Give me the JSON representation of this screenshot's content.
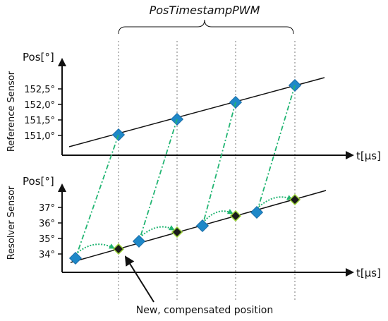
{
  "title": "PosTimestampPWM",
  "reference": {
    "axis_label": "Reference Sensor",
    "y_unit_label": "Pos[°]",
    "x_unit_label": "t[µs]",
    "ticks": [
      "152,5°",
      "152,0°",
      "151,5°",
      "151,0°"
    ]
  },
  "resolver": {
    "axis_label": "Resolver Sensor",
    "y_unit_label": "Pos[°]",
    "x_unit_label": "t[µs]",
    "ticks": [
      "37°",
      "36°",
      "35°",
      "34°"
    ]
  },
  "annotation": "New, compensated position",
  "colors": {
    "axis": "#111111",
    "measurement_marker": "#1e88c8",
    "compensated_marker": "#1a1a1a",
    "compensated_outline": "#9bd23a",
    "connector": "#22b573"
  }
}
